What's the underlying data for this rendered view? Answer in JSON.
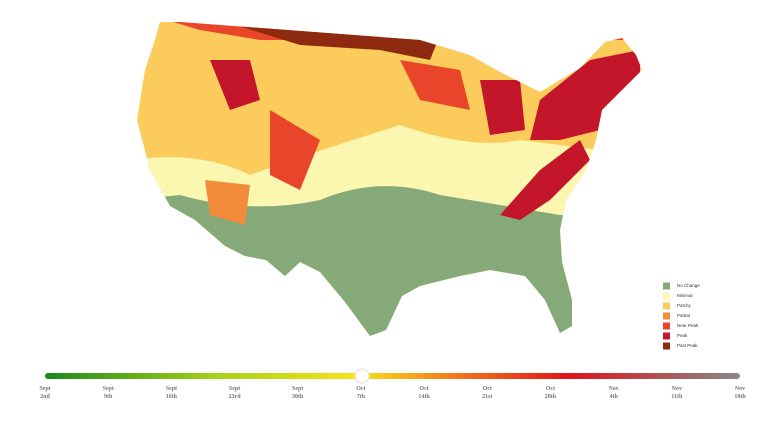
{
  "legend": [
    {
      "label": "No Change",
      "color": "#86a97a"
    },
    {
      "label": "Minimal",
      "color": "#fbf6b0"
    },
    {
      "label": "Patchy",
      "color": "#fbcb5c"
    },
    {
      "label": "Partial",
      "color": "#f28c3a"
    },
    {
      "label": "Near Peak",
      "color": "#e8452a"
    },
    {
      "label": "Peak",
      "color": "#c4162a"
    },
    {
      "label": "Past Peak",
      "color": "#8e2a0f"
    }
  ],
  "timeline": {
    "labels": [
      {
        "month": "Sept",
        "day": "2nd"
      },
      {
        "month": "Sept",
        "day": "9th"
      },
      {
        "month": "Sept",
        "day": "16th"
      },
      {
        "month": "Sept",
        "day": "23rd"
      },
      {
        "month": "Sept",
        "day": "30th"
      },
      {
        "month": "Oct",
        "day": "7th"
      },
      {
        "month": "Oct",
        "day": "14th"
      },
      {
        "month": "Oct",
        "day": "21st"
      },
      {
        "month": "Oct",
        "day": "28th"
      },
      {
        "month": "Nov",
        "day": "4th"
      },
      {
        "month": "Nov",
        "day": "11th"
      },
      {
        "month": "Nov",
        "day": "18th"
      }
    ]
  }
}
